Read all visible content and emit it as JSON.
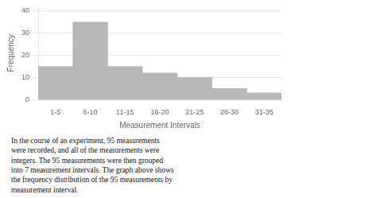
{
  "chart_data": {
    "type": "bar",
    "categories": [
      "1-5",
      "6-10",
      "11-15",
      "16-20",
      "21-25",
      "26-30",
      "31-35"
    ],
    "values": [
      15,
      35,
      15,
      12,
      10,
      5,
      3
    ],
    "color": "#b8b8b8",
    "xlabel": "Measurement Intervals",
    "ylabel": "Frequency",
    "ylim": [
      0,
      42
    ],
    "yticks": [
      0,
      10,
      20,
      30,
      40
    ],
    "grid": true,
    "annotations": [
      "In the course of an experiment, 95 measurements\nwere recorded, and all of the measurements were\nintegers. The 95 measurements were then grouped\ninto 7 measurement intervals. The graph above shows\nthe frequency distribution of the 95 measurements by\nmeasurement interval."
    ]
  }
}
